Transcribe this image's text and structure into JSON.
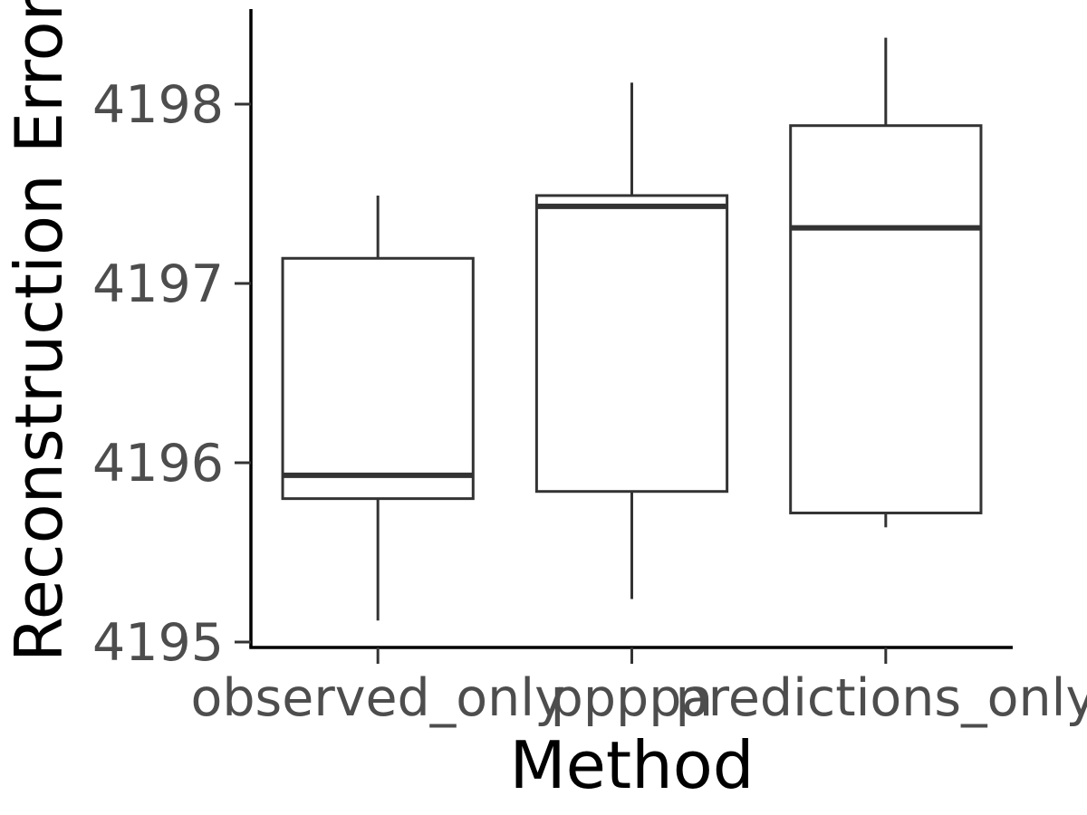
{
  "chart_data": {
    "type": "boxplot",
    "title": "",
    "xlabel": "Method",
    "ylabel": "Reconstruction Error",
    "categories": [
      "observed_only",
      "ppppa",
      "predictions_only"
    ],
    "boxes": [
      {
        "category": "observed_only",
        "whisker_low": 4195.12,
        "q1": 4195.8,
        "median": 4195.93,
        "q3": 4197.14,
        "whisker_high": 4197.49
      },
      {
        "category": "ppppa",
        "whisker_low": 4195.24,
        "q1": 4195.84,
        "median": 4197.43,
        "q3": 4197.49,
        "whisker_high": 4198.12
      },
      {
        "category": "predictions_only",
        "whisker_low": 4195.64,
        "q1": 4195.72,
        "median": 4197.31,
        "q3": 4197.88,
        "whisker_high": 4198.37
      }
    ],
    "yticks": [
      4195,
      4196,
      4197,
      4198
    ],
    "ylim": [
      4194.97,
      4198.53
    ],
    "grid": false,
    "colors": {
      "box_stroke": "#333333",
      "box_fill": "#ffffff",
      "tick_label": "#4d4d4d",
      "axis": "#000000"
    }
  }
}
